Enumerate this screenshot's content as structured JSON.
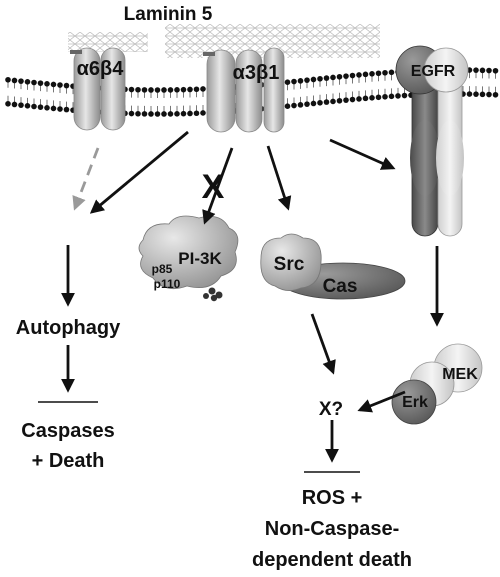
{
  "title": "Laminin 5",
  "receptors": {
    "a6b4": "α6β4",
    "a3b1": "α3β1",
    "egfr": "EGFR"
  },
  "blocked_mark": "X",
  "nodes": {
    "pi3k": "PI-3K",
    "p85": "p85",
    "p110": "p110",
    "src": "Src",
    "cas": "Cas",
    "mek": "MEK",
    "erk": "Erk",
    "x_unknown": "X?",
    "autophagy": "Autophagy",
    "caspases_line1": "Caspases",
    "caspases_line2": "+ Death",
    "ros_line1": "ROS +",
    "ros_line2": "Non-Caspase-",
    "ros_line3": "dependent death"
  },
  "colors": {
    "membrane_head": "#111111",
    "receptor_light": "#c8c8c8",
    "receptor_mid": "#a9a9a9",
    "receptor_dark": "#6e6e6e",
    "arrow": "#111111",
    "dashed_arrow": "#9a9a9a"
  }
}
